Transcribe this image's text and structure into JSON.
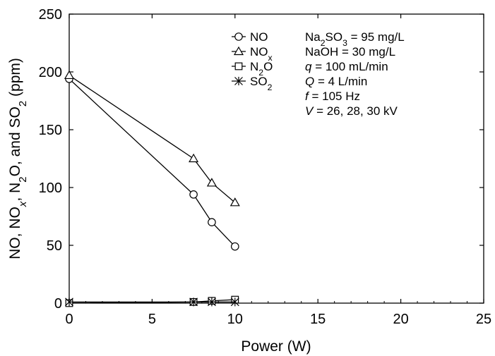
{
  "chart_data": {
    "type": "line",
    "xlabel": "Power (W)",
    "ylabel_parts": [
      {
        "t": "NO, NO",
        "s": "normal"
      },
      {
        "t": "x",
        "s": "sub-italic"
      },
      {
        "t": ", N",
        "s": "normal"
      },
      {
        "t": "2",
        "s": "sub"
      },
      {
        "t": "O, and SO",
        "s": "normal"
      },
      {
        "t": "2",
        "s": "sub"
      },
      {
        "t": " (ppm)",
        "s": "normal"
      }
    ],
    "xlim": [
      0,
      25
    ],
    "ylim": [
      0,
      250
    ],
    "xticks": [
      "0",
      "5",
      "10",
      "15",
      "20",
      "25"
    ],
    "yticks": [
      "0",
      "50",
      "100",
      "150",
      "200",
      "250"
    ],
    "grid": false,
    "legend_position": "top-right",
    "series": [
      {
        "key": "NO",
        "marker": "circle",
        "legend": [
          {
            "t": "NO",
            "s": "normal"
          }
        ],
        "x": [
          0,
          7.5,
          8.6,
          10
        ],
        "y": [
          194,
          94,
          70,
          49
        ]
      },
      {
        "key": "NOx",
        "marker": "triangle",
        "legend": [
          {
            "t": "NO",
            "s": "normal"
          },
          {
            "t": "x",
            "s": "sub"
          }
        ],
        "x": [
          0,
          7.5,
          8.6,
          10
        ],
        "y": [
          197,
          125,
          104,
          87
        ]
      },
      {
        "key": "N2O",
        "marker": "square",
        "legend": [
          {
            "t": "N",
            "s": "normal"
          },
          {
            "t": "2",
            "s": "sub"
          },
          {
            "t": "O",
            "s": "normal"
          }
        ],
        "x": [
          0,
          7.5,
          8.6,
          10
        ],
        "y": [
          0,
          1,
          2,
          3
        ]
      },
      {
        "key": "SO2",
        "marker": "star",
        "legend": [
          {
            "t": "SO",
            "s": "normal"
          },
          {
            "t": "2",
            "s": "sub"
          }
        ],
        "x": [
          0,
          7.5,
          8.6,
          10
        ],
        "y": [
          1,
          1,
          1,
          1
        ]
      }
    ],
    "conditions": [
      [
        {
          "t": "Na",
          "s": "normal"
        },
        {
          "t": "2",
          "s": "sub"
        },
        {
          "t": "SO",
          "s": "normal"
        },
        {
          "t": "3",
          "s": "sub"
        },
        {
          "t": " = 95 mg/L",
          "s": "normal"
        }
      ],
      [
        {
          "t": "NaOH = 30 mg/L",
          "s": "normal"
        }
      ],
      [
        {
          "t": "q",
          "s": "italic"
        },
        {
          "t": " = 100 mL/min",
          "s": "normal"
        }
      ],
      [
        {
          "t": "Q",
          "s": "italic"
        },
        {
          "t": " = 4 L/min",
          "s": "normal"
        }
      ],
      [
        {
          "t": "f",
          "s": "italic"
        },
        {
          "t": " = 105 Hz",
          "s": "normal"
        }
      ],
      [
        {
          "t": "V",
          "s": "italic"
        },
        {
          "t": " = 26,  28,  30 kV",
          "s": "normal"
        }
      ]
    ]
  }
}
